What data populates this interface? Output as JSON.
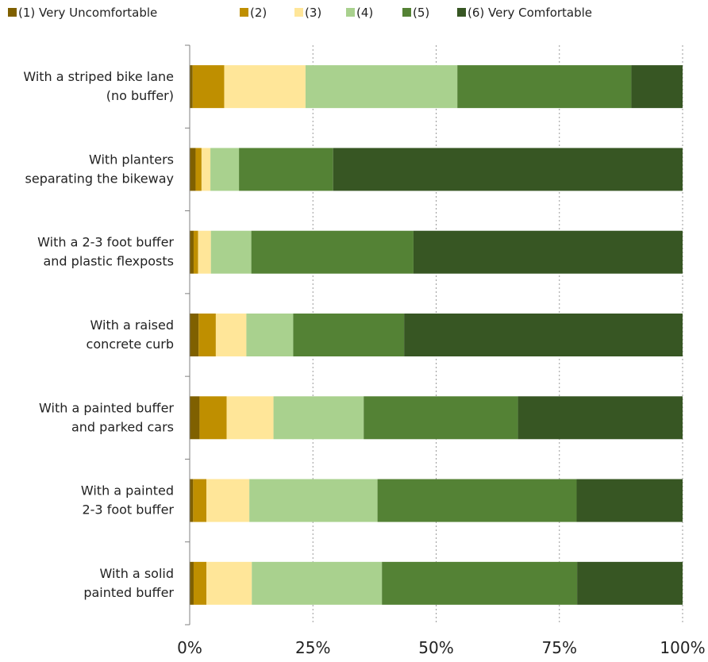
{
  "chart_data": {
    "type": "bar",
    "orientation": "horizontal",
    "stacked": true,
    "percent": true,
    "legend_position": "top",
    "grid": true,
    "xlim": [
      0,
      100
    ],
    "ticks": [
      "0%",
      "25%",
      "50%",
      "75%",
      "100%"
    ],
    "tick_values": [
      0,
      25,
      50,
      75,
      100
    ],
    "categories": [
      [
        "With a striped bike lane",
        "(no buffer)"
      ],
      [
        "With planters",
        "separating the bikeway"
      ],
      [
        "With a 2-3 foot buffer",
        "and plastic flexposts"
      ],
      [
        "With a raised",
        "concrete curb"
      ],
      [
        "With a painted buffer",
        "and parked cars"
      ],
      [
        "With a painted",
        "2-3 foot buffer"
      ],
      [
        "With a solid",
        "painted buffer"
      ]
    ],
    "series": [
      {
        "name": "(1) Very Uncomfortable",
        "color": "#7f6000",
        "values": [
          0.6,
          1.2,
          0.8,
          1.8,
          2.0,
          0.7,
          0.8
        ]
      },
      {
        "name": "(2)",
        "color": "#bf8f00",
        "values": [
          6.4,
          1.2,
          0.9,
          3.5,
          5.5,
          2.7,
          2.6
        ]
      },
      {
        "name": "(3)",
        "color": "#ffe699",
        "values": [
          16.5,
          1.8,
          2.6,
          6.2,
          9.5,
          8.7,
          9.2
        ]
      },
      {
        "name": "(4)",
        "color": "#a9d18e",
        "values": [
          30.8,
          5.8,
          8.2,
          9.5,
          18.3,
          26.0,
          26.4
        ]
      },
      {
        "name": "(5)",
        "color": "#548235",
        "values": [
          35.3,
          19.1,
          32.9,
          22.5,
          31.3,
          40.4,
          39.6
        ]
      },
      {
        "name": "(6) Very Comfortable",
        "color": "#375623",
        "values": [
          10.4,
          70.9,
          54.6,
          56.5,
          33.4,
          21.5,
          21.4
        ]
      }
    ]
  }
}
